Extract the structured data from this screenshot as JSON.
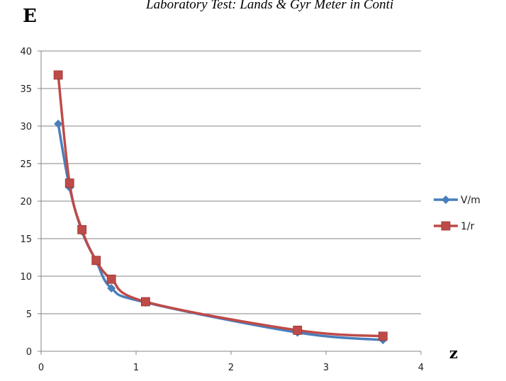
{
  "header": {
    "text": "Laboratory Test: Lands & Gyr Meter in Conti"
  },
  "chart_data": {
    "type": "line",
    "ylabel": "E",
    "xlabel": "z",
    "xlim": [
      0,
      4
    ],
    "ylim": [
      0,
      40
    ],
    "xticks": [
      0,
      1,
      2,
      3,
      4
    ],
    "yticks": [
      0,
      5,
      10,
      15,
      20,
      25,
      30,
      35,
      40
    ],
    "grid": "horizontal",
    "legend_position": "right",
    "series": [
      {
        "name": "V/m",
        "color": "#4a7ebb",
        "marker": "diamond",
        "x": [
          0.18,
          0.3,
          0.43,
          0.58,
          0.74,
          1.1,
          2.7,
          3.6
        ],
        "y": [
          30.3,
          21.8,
          16.0,
          12.0,
          8.4,
          6.5,
          2.5,
          1.5
        ]
      },
      {
        "name": "1/r",
        "color": "#be4b48",
        "marker": "square",
        "x": [
          0.18,
          0.3,
          0.43,
          0.58,
          0.74,
          1.1,
          2.7,
          3.6
        ],
        "y": [
          36.8,
          22.4,
          16.2,
          12.1,
          9.6,
          6.6,
          2.8,
          2.0
        ]
      }
    ]
  }
}
